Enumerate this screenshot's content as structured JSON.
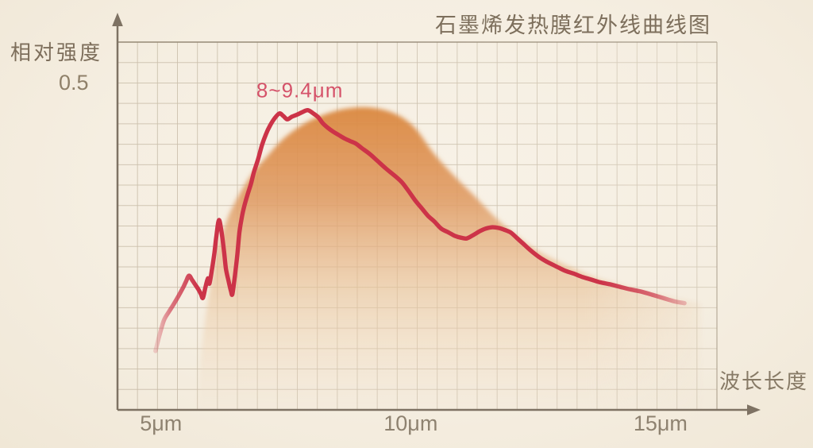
{
  "chart_data": {
    "type": "line",
    "title": "石墨烯发热膜红外线曲线图",
    "xlabel": "波长长度",
    "ylabel": "相对强度",
    "x_unit": "μm",
    "x_ticks": [
      {
        "value": 5,
        "label": "5μm"
      },
      {
        "value": 10,
        "label": "10μm"
      },
      {
        "value": 15,
        "label": "15μm"
      }
    ],
    "y_ticks": [
      {
        "value": 0.5,
        "label": "0.5"
      }
    ],
    "axis_range": {
      "x_min": 4.13,
      "x_max": 16.13,
      "y_min": 0,
      "y_max": 0.562
    },
    "grid": {
      "show": true,
      "columns": 30,
      "rows": 18
    },
    "legend": {
      "show": false
    },
    "annotation": {
      "text": "8~9.4μm",
      "x": 7.78,
      "y": 0.488
    },
    "series": [
      {
        "name": "infrared-intensity-curve",
        "type": "line",
        "color": "#cc3348",
        "points": [
          [
            4.89,
            0.09
          ],
          [
            4.97,
            0.114
          ],
          [
            5.06,
            0.137
          ],
          [
            5.16,
            0.15
          ],
          [
            5.25,
            0.161
          ],
          [
            5.35,
            0.174
          ],
          [
            5.45,
            0.188
          ],
          [
            5.5,
            0.196
          ],
          [
            5.56,
            0.205
          ],
          [
            5.62,
            0.199
          ],
          [
            5.68,
            0.192
          ],
          [
            5.75,
            0.184
          ],
          [
            5.8,
            0.177
          ],
          [
            5.84,
            0.171
          ],
          [
            5.89,
            0.187
          ],
          [
            5.94,
            0.201
          ],
          [
            5.97,
            0.193
          ],
          [
            6.02,
            0.214
          ],
          [
            6.07,
            0.24
          ],
          [
            6.11,
            0.266
          ],
          [
            6.16,
            0.29
          ],
          [
            6.21,
            0.273
          ],
          [
            6.26,
            0.244
          ],
          [
            6.3,
            0.216
          ],
          [
            6.35,
            0.198
          ],
          [
            6.4,
            0.182
          ],
          [
            6.43,
            0.177
          ],
          [
            6.48,
            0.205
          ],
          [
            6.53,
            0.238
          ],
          [
            6.57,
            0.271
          ],
          [
            6.62,
            0.295
          ],
          [
            6.67,
            0.312
          ],
          [
            6.73,
            0.328
          ],
          [
            6.8,
            0.345
          ],
          [
            6.86,
            0.363
          ],
          [
            6.94,
            0.382
          ],
          [
            7.02,
            0.404
          ],
          [
            7.1,
            0.421
          ],
          [
            7.18,
            0.434
          ],
          [
            7.27,
            0.445
          ],
          [
            7.37,
            0.453
          ],
          [
            7.45,
            0.449
          ],
          [
            7.53,
            0.444
          ],
          [
            7.62,
            0.448
          ],
          [
            7.72,
            0.451
          ],
          [
            7.83,
            0.455
          ],
          [
            7.94,
            0.458
          ],
          [
            8.05,
            0.453
          ],
          [
            8.15,
            0.447
          ],
          [
            8.24,
            0.438
          ],
          [
            8.34,
            0.431
          ],
          [
            8.45,
            0.425
          ],
          [
            8.56,
            0.42
          ],
          [
            8.67,
            0.415
          ],
          [
            8.78,
            0.411
          ],
          [
            8.9,
            0.407
          ],
          [
            9.02,
            0.4
          ],
          [
            9.18,
            0.391
          ],
          [
            9.34,
            0.38
          ],
          [
            9.5,
            0.369
          ],
          [
            9.66,
            0.359
          ],
          [
            9.82,
            0.348
          ],
          [
            9.96,
            0.334
          ],
          [
            10.09,
            0.32
          ],
          [
            10.21,
            0.309
          ],
          [
            10.34,
            0.297
          ],
          [
            10.47,
            0.288
          ],
          [
            10.61,
            0.277
          ],
          [
            10.76,
            0.271
          ],
          [
            10.88,
            0.266
          ],
          [
            11.01,
            0.263
          ],
          [
            11.12,
            0.262
          ],
          [
            11.25,
            0.267
          ],
          [
            11.38,
            0.273
          ],
          [
            11.5,
            0.277
          ],
          [
            11.63,
            0.279
          ],
          [
            11.76,
            0.278
          ],
          [
            11.88,
            0.275
          ],
          [
            12.0,
            0.271
          ],
          [
            12.12,
            0.263
          ],
          [
            12.25,
            0.254
          ],
          [
            12.38,
            0.245
          ],
          [
            12.49,
            0.238
          ],
          [
            12.6,
            0.232
          ],
          [
            12.71,
            0.227
          ],
          [
            12.84,
            0.222
          ],
          [
            12.97,
            0.217
          ],
          [
            13.11,
            0.212
          ],
          [
            13.27,
            0.208
          ],
          [
            13.44,
            0.203
          ],
          [
            13.62,
            0.199
          ],
          [
            13.79,
            0.195
          ],
          [
            13.98,
            0.192
          ],
          [
            14.19,
            0.188
          ],
          [
            14.4,
            0.184
          ],
          [
            14.6,
            0.181
          ],
          [
            14.83,
            0.176
          ],
          [
            15.05,
            0.171
          ],
          [
            15.27,
            0.166
          ],
          [
            15.48,
            0.163
          ]
        ]
      },
      {
        "name": "infrared-envelope-fill",
        "type": "area",
        "color_top": "#da8840",
        "color_bottom": "#f4e6d3",
        "points": [
          [
            5.75,
            0.001
          ],
          [
            5.79,
            0.068
          ],
          [
            5.87,
            0.129
          ],
          [
            5.99,
            0.189
          ],
          [
            6.13,
            0.244
          ],
          [
            6.32,
            0.29
          ],
          [
            6.54,
            0.325
          ],
          [
            6.81,
            0.359
          ],
          [
            7.13,
            0.388
          ],
          [
            7.46,
            0.415
          ],
          [
            7.86,
            0.437
          ],
          [
            8.26,
            0.451
          ],
          [
            8.69,
            0.46
          ],
          [
            9.18,
            0.462
          ],
          [
            9.67,
            0.453
          ],
          [
            10.07,
            0.432
          ],
          [
            10.45,
            0.393
          ],
          [
            10.85,
            0.359
          ],
          [
            11.26,
            0.328
          ],
          [
            11.68,
            0.295
          ],
          [
            12.09,
            0.268
          ],
          [
            12.5,
            0.245
          ],
          [
            12.92,
            0.228
          ],
          [
            13.33,
            0.214
          ],
          [
            13.74,
            0.201
          ],
          [
            14.16,
            0.192
          ],
          [
            14.57,
            0.183
          ],
          [
            14.98,
            0.176
          ],
          [
            15.4,
            0.169
          ],
          [
            15.81,
            0.163
          ]
        ]
      }
    ],
    "style_colors": {
      "curve": "#cc3348",
      "fill_top": "#da8840",
      "fill_mid": "#e9c298",
      "fill_bottom": "#f4e6d3",
      "axis": "#7e7263",
      "frame": "#958876",
      "grid": "#c8bca8",
      "title_text": "#7d6f5c",
      "tick_text": "#8e8270",
      "annotation_text": "#d5536a",
      "background": "#f6efe3"
    }
  }
}
